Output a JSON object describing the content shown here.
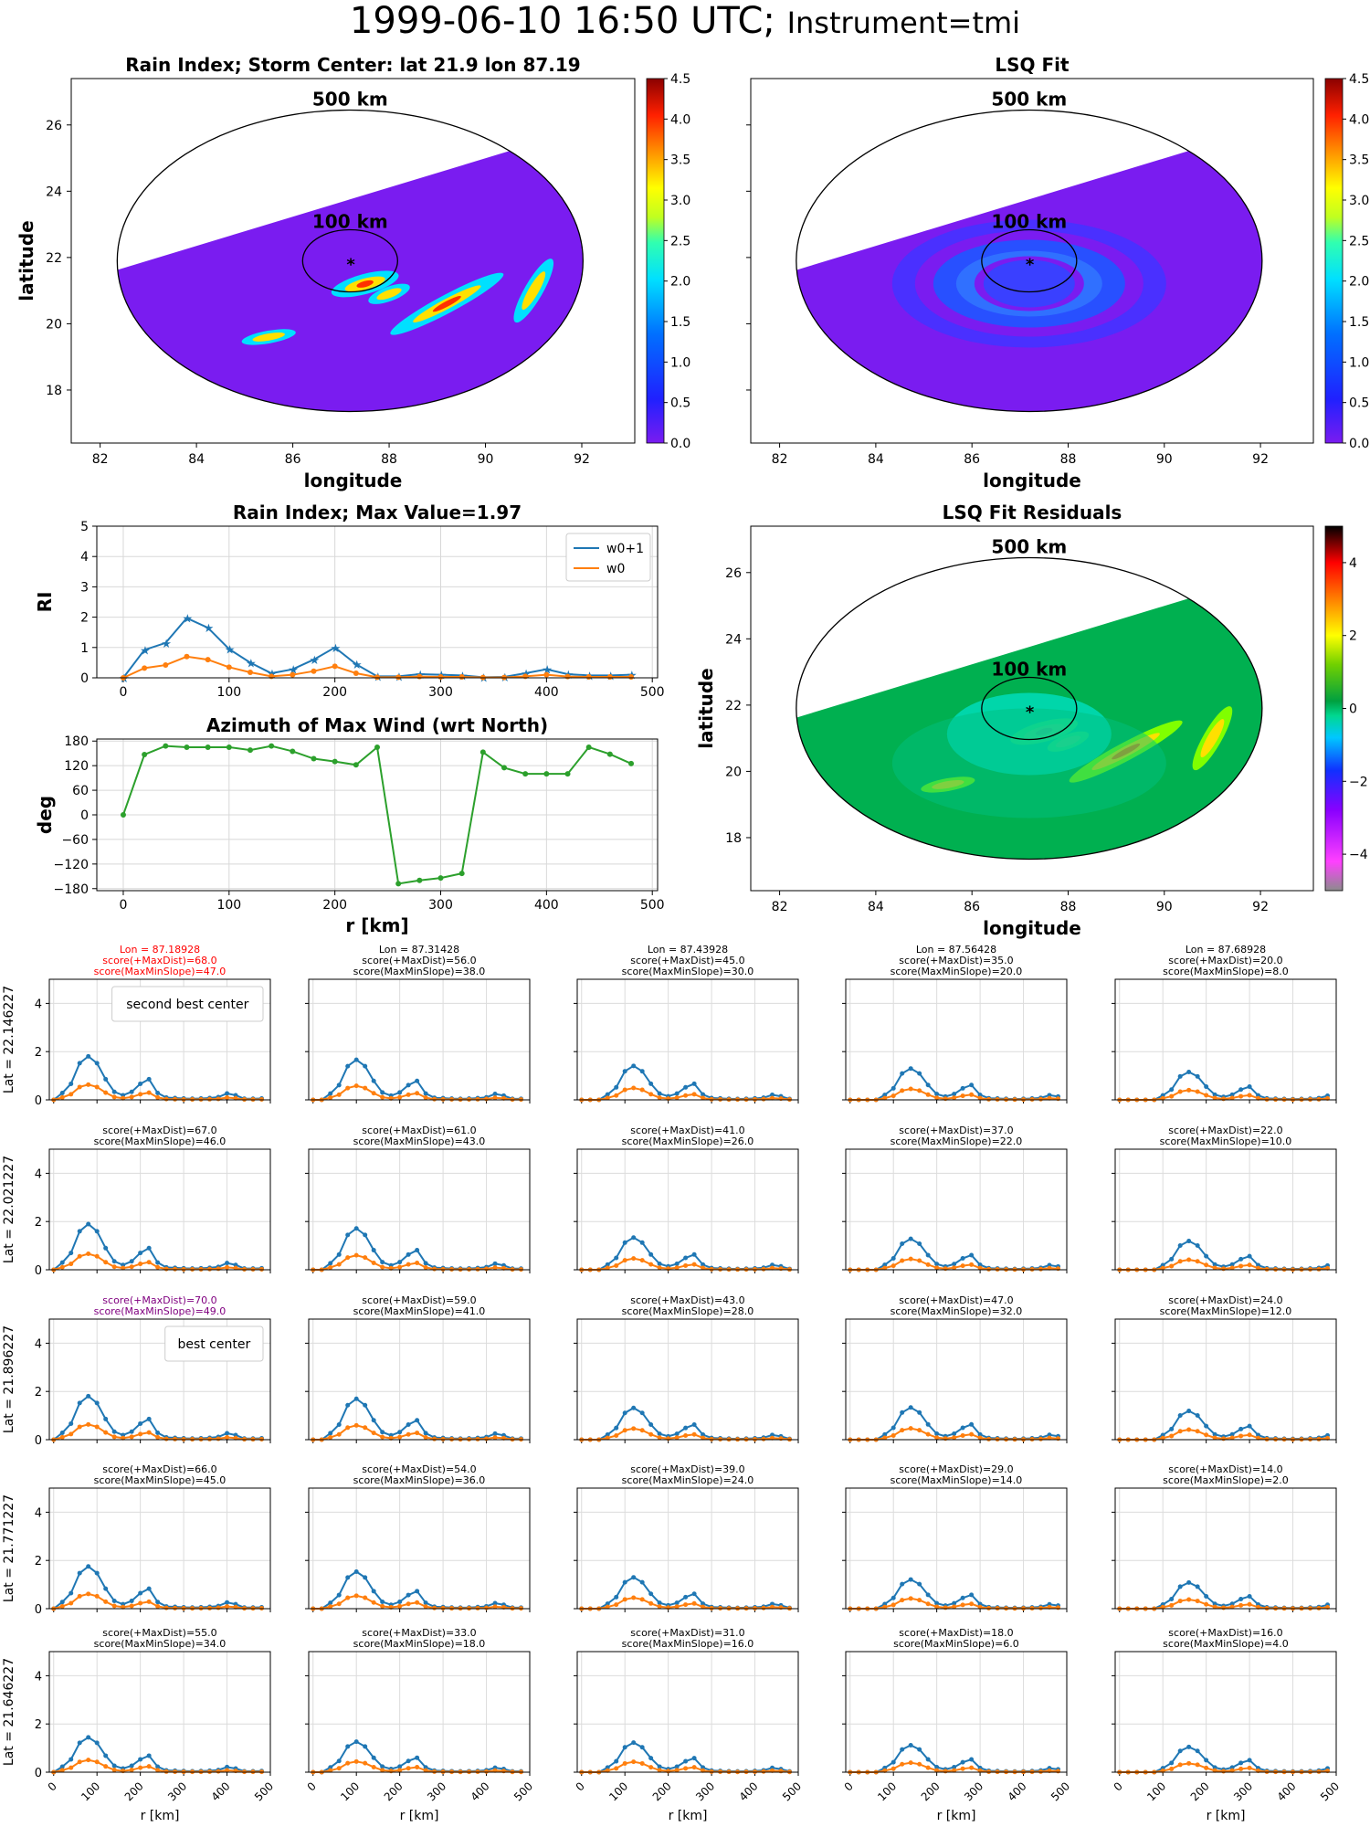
{
  "suptitle": {
    "main": "1999-06-10 16:50 UTC;",
    "instrument": "Instrument=tmi"
  },
  "colors": {
    "w0p1": "#1f77b4",
    "w0": "#ff7f0e",
    "azimuth": "#2ca02c",
    "best_text": "#800080",
    "second_text": "#ff0000",
    "swath": "#7a1cf0"
  },
  "maps": [
    {
      "id": "rain-index-map",
      "title": "Rain Index; Storm Center: lat 21.9 lon 87.19",
      "xlabel": "longitude",
      "ylabel": "latitude",
      "xticks": [
        "82",
        "84",
        "86",
        "88",
        "90",
        "92"
      ],
      "yticks": [
        "18",
        "20",
        "22",
        "24",
        "26"
      ],
      "ring_labels": [
        "500 km",
        "100 km"
      ],
      "colorbar": {
        "type": "jet",
        "ticks": [
          "0.0",
          "0.5",
          "1.0",
          "1.5",
          "2.0",
          "2.5",
          "3.0",
          "3.5",
          "4.0",
          "4.5"
        ],
        "range": [
          0,
          4.5
        ]
      }
    },
    {
      "id": "lsq-fit-map",
      "title": "LSQ Fit",
      "xlabel": "longitude",
      "ylabel": "",
      "xticks": [
        "82",
        "84",
        "86",
        "88",
        "90",
        "92"
      ],
      "yticks": [],
      "ring_labels": [
        "500 km",
        "100 km"
      ],
      "colorbar": {
        "type": "jet",
        "ticks": [
          "0.0",
          "0.5",
          "1.0",
          "1.5",
          "2.0",
          "2.5",
          "3.0",
          "3.5",
          "4.0",
          "4.5"
        ],
        "range": [
          0,
          4.5
        ]
      }
    },
    {
      "id": "residuals-map",
      "title": "LSQ Fit Residuals",
      "xlabel": "longitude",
      "ylabel": "latitude",
      "xticks": [
        "82",
        "84",
        "86",
        "88",
        "90",
        "92"
      ],
      "yticks": [
        "18",
        "20",
        "22",
        "24",
        "26"
      ],
      "ring_labels": [
        "500 km",
        "100 km"
      ],
      "colorbar": {
        "type": "diverging",
        "ticks": [
          "−4",
          "−2",
          "0",
          "2",
          "4"
        ],
        "range": [
          -5,
          5
        ]
      }
    }
  ],
  "chart_data": [
    {
      "type": "line",
      "id": "rain-index-profile",
      "title": "Rain Index; Max Value=1.97",
      "xlabel": "",
      "ylabel": "RI",
      "xlim": [
        -25,
        505
      ],
      "ylim": [
        0,
        5
      ],
      "xticks": [
        "0",
        "100",
        "200",
        "300",
        "400",
        "500"
      ],
      "yticks": [
        "0",
        "1",
        "2",
        "3",
        "4",
        "5"
      ],
      "legend": "top-right",
      "x": [
        0,
        20,
        40,
        60,
        80,
        100,
        120,
        140,
        160,
        180,
        200,
        220,
        240,
        260,
        280,
        300,
        320,
        340,
        360,
        380,
        400,
        420,
        440,
        460,
        480
      ],
      "series": [
        {
          "name": "w0+1",
          "values": [
            0,
            0.92,
            1.15,
            1.97,
            1.65,
            0.95,
            0.5,
            0.15,
            0.28,
            0.6,
            1.0,
            0.45,
            0.05,
            0.05,
            0.12,
            0.1,
            0.08,
            0.02,
            0.03,
            0.15,
            0.28,
            0.12,
            0.08,
            0.08,
            0.1
          ]
        },
        {
          "name": "w0",
          "values": [
            0,
            0.32,
            0.42,
            0.7,
            0.6,
            0.35,
            0.18,
            0.05,
            0.1,
            0.22,
            0.38,
            0.15,
            0.02,
            0.02,
            0.04,
            0.03,
            0.03,
            0.01,
            0.01,
            0.05,
            0.1,
            0.04,
            0.03,
            0.03,
            0.03
          ]
        }
      ]
    },
    {
      "type": "line",
      "id": "azimuth-profile",
      "title": "Azimuth of Max Wind (wrt North)",
      "xlabel": "r [km]",
      "ylabel": "deg",
      "xlim": [
        -25,
        505
      ],
      "ylim": [
        -185,
        185
      ],
      "xticks": [
        "0",
        "100",
        "200",
        "300",
        "400",
        "500"
      ],
      "yticks": [
        "−180",
        "−120",
        "−60",
        "0",
        "60",
        "120",
        "180"
      ],
      "x": [
        0,
        20,
        40,
        60,
        80,
        100,
        120,
        140,
        160,
        180,
        200,
        220,
        240,
        260,
        280,
        300,
        320,
        340,
        360,
        380,
        400,
        420,
        440,
        460,
        480
      ],
      "series": [
        {
          "name": "",
          "values": [
            0,
            147,
            168,
            165,
            165,
            165,
            158,
            168,
            155,
            137,
            130,
            122,
            165,
            -168,
            -160,
            -154,
            -143,
            153,
            115,
            100,
            100,
            100,
            165,
            148,
            125
          ]
        }
      ]
    },
    {
      "type": "line",
      "id": "center-grid",
      "x": [
        0,
        20,
        40,
        60,
        80,
        100,
        120,
        140,
        160,
        180,
        200,
        220,
        240,
        260,
        280,
        300,
        320,
        340,
        360,
        380,
        400,
        420,
        440,
        460,
        480
      ],
      "xticks": [
        "0",
        "100",
        "200",
        "300",
        "400",
        "500"
      ],
      "yticks": [
        "0",
        "2",
        "4"
      ],
      "ylim": [
        0,
        5
      ],
      "xlim": [
        -10,
        500
      ],
      "xlabel": "r [km]",
      "row_labels": [
        "Lat = 22.146227",
        "Lat = 22.021227",
        "Lat = 21.896227",
        "Lat = 21.771227",
        "Lat = 21.646227"
      ],
      "panels": [
        [
          {
            "lines": [
              "Lon = 87.18928",
              "score(+MaxDist)=68.0",
              "score(MaxMinSlope)=47.0"
            ],
            "color": "red",
            "legend": "second best center",
            "peak": 0,
            "amp": 1.0
          },
          {
            "lines": [
              "Lon = 87.31428",
              "score(+MaxDist)=56.0",
              "score(MaxMinSlope)=38.0"
            ],
            "color": "",
            "legend": "",
            "peak": 1,
            "amp": 0.92
          },
          {
            "lines": [
              "Lon = 87.43928",
              "score(+MaxDist)=45.0",
              "score(MaxMinSlope)=30.0"
            ],
            "color": "",
            "legend": "",
            "peak": 2,
            "amp": 0.78
          },
          {
            "lines": [
              "Lon = 87.56428",
              "score(+MaxDist)=35.0",
              "score(MaxMinSlope)=20.0"
            ],
            "color": "",
            "legend": "",
            "peak": 3,
            "amp": 0.72
          },
          {
            "lines": [
              "Lon = 87.68928",
              "score(+MaxDist)=20.0",
              "score(MaxMinSlope)=8.0"
            ],
            "color": "",
            "legend": "",
            "peak": 4,
            "amp": 0.64
          }
        ],
        [
          {
            "lines": [
              "score(+MaxDist)=67.0",
              "score(MaxMinSlope)=46.0"
            ],
            "color": "",
            "legend": "",
            "peak": 0,
            "amp": 1.05
          },
          {
            "lines": [
              "score(+MaxDist)=61.0",
              "score(MaxMinSlope)=43.0"
            ],
            "color": "",
            "legend": "",
            "peak": 1,
            "amp": 0.95
          },
          {
            "lines": [
              "score(+MaxDist)=41.0",
              "score(MaxMinSlope)=26.0"
            ],
            "color": "",
            "legend": "",
            "peak": 2,
            "amp": 0.74
          },
          {
            "lines": [
              "score(+MaxDist)=37.0",
              "score(MaxMinSlope)=22.0"
            ],
            "color": "",
            "legend": "",
            "peak": 3,
            "amp": 0.71
          },
          {
            "lines": [
              "score(+MaxDist)=22.0",
              "score(MaxMinSlope)=10.0"
            ],
            "color": "",
            "legend": "",
            "peak": 4,
            "amp": 0.66
          }
        ],
        [
          {
            "lines": [
              "score(+MaxDist)=70.0",
              "score(MaxMinSlope)=49.0"
            ],
            "color": "purple",
            "legend": "best center",
            "peak": 0,
            "amp": 1.0
          },
          {
            "lines": [
              "score(+MaxDist)=59.0",
              "score(MaxMinSlope)=41.0"
            ],
            "color": "",
            "legend": "",
            "peak": 1,
            "amp": 0.94
          },
          {
            "lines": [
              "score(+MaxDist)=43.0",
              "score(MaxMinSlope)=28.0"
            ],
            "color": "",
            "legend": "",
            "peak": 2,
            "amp": 0.73
          },
          {
            "lines": [
              "score(+MaxDist)=47.0",
              "score(MaxMinSlope)=32.0"
            ],
            "color": "",
            "legend": "",
            "peak": 3,
            "amp": 0.74
          },
          {
            "lines": [
              "score(+MaxDist)=24.0",
              "score(MaxMinSlope)=12.0"
            ],
            "color": "",
            "legend": "",
            "peak": 4,
            "amp": 0.66
          }
        ],
        [
          {
            "lines": [
              "score(+MaxDist)=66.0",
              "score(MaxMinSlope)=45.0"
            ],
            "color": "",
            "legend": "",
            "peak": 0,
            "amp": 0.97
          },
          {
            "lines": [
              "score(+MaxDist)=54.0",
              "score(MaxMinSlope)=36.0"
            ],
            "color": "",
            "legend": "",
            "peak": 1,
            "amp": 0.85
          },
          {
            "lines": [
              "score(+MaxDist)=39.0",
              "score(MaxMinSlope)=24.0"
            ],
            "color": "",
            "legend": "",
            "peak": 2,
            "amp": 0.72
          },
          {
            "lines": [
              "score(+MaxDist)=29.0",
              "score(MaxMinSlope)=14.0"
            ],
            "color": "",
            "legend": "",
            "peak": 3,
            "amp": 0.67
          },
          {
            "lines": [
              "score(+MaxDist)=14.0",
              "score(MaxMinSlope)=2.0"
            ],
            "color": "",
            "legend": "",
            "peak": 4,
            "amp": 0.6
          }
        ],
        [
          {
            "lines": [
              "score(+MaxDist)=55.0",
              "score(MaxMinSlope)=34.0"
            ],
            "color": "",
            "legend": "",
            "peak": 0,
            "amp": 0.8
          },
          {
            "lines": [
              "score(+MaxDist)=33.0",
              "score(MaxMinSlope)=18.0"
            ],
            "color": "",
            "legend": "",
            "peak": 1,
            "amp": 0.7
          },
          {
            "lines": [
              "score(+MaxDist)=31.0",
              "score(MaxMinSlope)=16.0"
            ],
            "color": "",
            "legend": "",
            "peak": 2,
            "amp": 0.68
          },
          {
            "lines": [
              "score(+MaxDist)=18.0",
              "score(MaxMinSlope)=6.0"
            ],
            "color": "",
            "legend": "",
            "peak": 3,
            "amp": 0.62
          },
          {
            "lines": [
              "score(+MaxDist)=16.0",
              "score(MaxMinSlope)=4.0"
            ],
            "color": "",
            "legend": "",
            "peak": 4,
            "amp": 0.58
          }
        ]
      ]
    }
  ]
}
